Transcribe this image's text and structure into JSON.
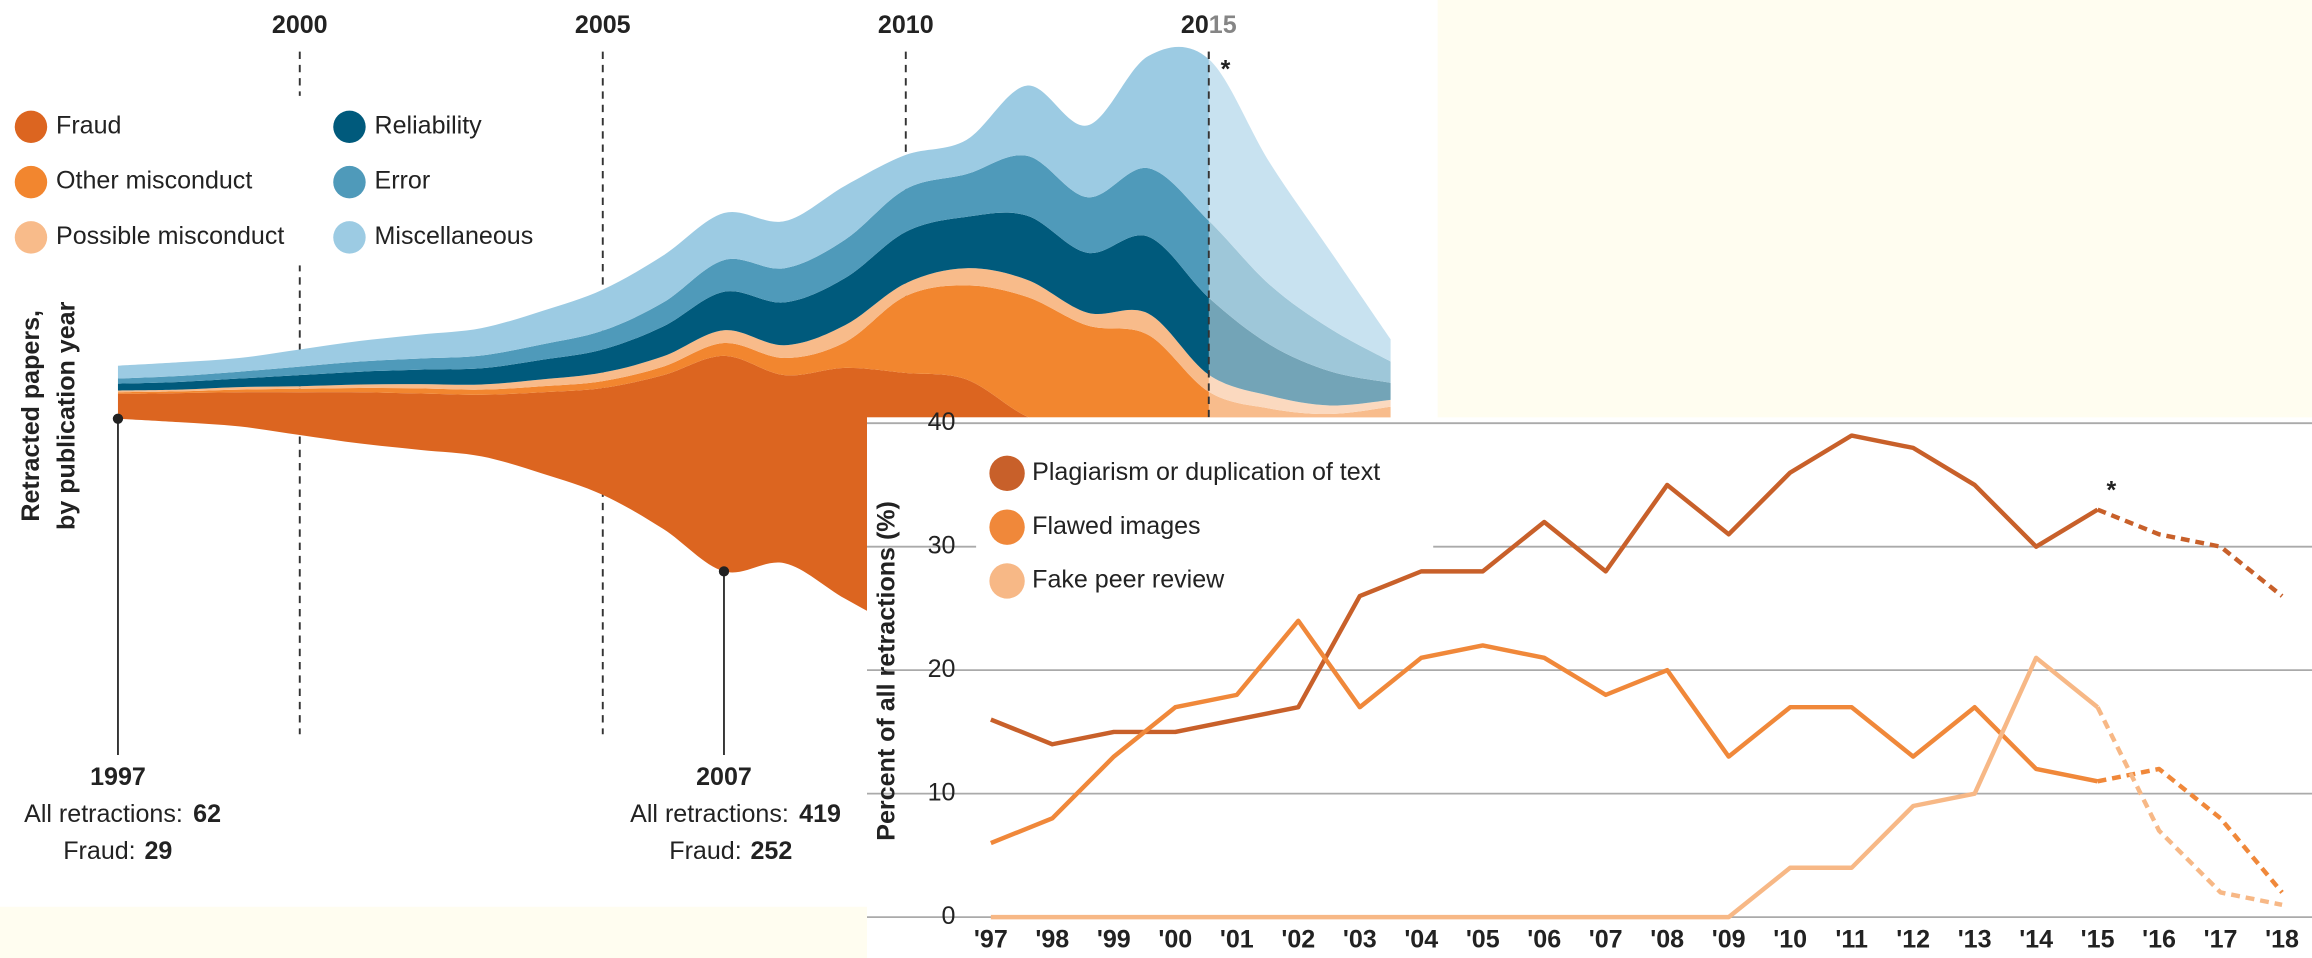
{
  "chart_data": [
    {
      "type": "streamgraph",
      "x": [
        1997,
        1998,
        1999,
        2000,
        2001,
        2002,
        2003,
        2004,
        2005,
        2006,
        2007,
        2008,
        2009,
        2010,
        2011,
        2012,
        2013,
        2014,
        2015,
        2016,
        2017,
        2018
      ],
      "xticks": [
        2000,
        2005,
        2010,
        2015
      ],
      "y_label": [
        "Retracted papers,",
        "by publication year"
      ],
      "projected_from": 2015,
      "projected_marker": "*",
      "series": [
        {
          "name": "Fraud",
          "color": "#dc6520",
          "values": [
            29,
            34,
            40,
            50,
            60,
            66,
            72,
            95,
            125,
            180,
            252,
            220,
            270,
            300,
            310,
            330,
            260,
            300,
            240,
            150,
            80,
            25
          ]
        },
        {
          "name": "Other misconduct",
          "color": "#f2862f",
          "values": [
            2,
            2,
            3,
            4,
            5,
            6,
            6,
            7,
            8,
            10,
            15,
            20,
            30,
            90,
            110,
            140,
            130,
            160,
            150,
            100,
            60,
            20
          ]
        },
        {
          "name": "Possible misconduct",
          "color": "#f8bb8a",
          "values": [
            2,
            2,
            3,
            3,
            4,
            5,
            6,
            8,
            10,
            12,
            15,
            15,
            20,
            15,
            20,
            20,
            15,
            25,
            20,
            15,
            10,
            8
          ]
        },
        {
          "name": "Reliability",
          "color": "#005a7c",
          "values": [
            8,
            9,
            10,
            13,
            15,
            17,
            19,
            23,
            27,
            35,
            45,
            50,
            55,
            60,
            60,
            75,
            70,
            90,
            90,
            60,
            40,
            20
          ]
        },
        {
          "name": "Error",
          "color": "#4f9aba",
          "values": [
            6,
            7,
            8,
            10,
            12,
            13,
            15,
            18,
            22,
            28,
            37,
            40,
            45,
            50,
            50,
            70,
            65,
            80,
            90,
            70,
            50,
            25
          ]
        },
        {
          "name": "Miscellaneous",
          "color": "#9ccbe3",
          "values": [
            15,
            16,
            16,
            20,
            24,
            28,
            32,
            39,
            48,
            55,
            55,
            55,
            63,
            40,
            40,
            82,
            84,
            131,
            189,
            143,
            91,
            26
          ]
        }
      ],
      "annotations": [
        {
          "x": 1997,
          "total_label": "All retractions:",
          "total": 62,
          "fraud_label": "Fraud:",
          "fraud": 29
        },
        {
          "x": 2007,
          "total_label": "All retractions:",
          "total": 419,
          "fraud_label": "Fraud:",
          "fraud": 252
        }
      ]
    },
    {
      "type": "line",
      "categories": [
        "'97",
        "'98",
        "'99",
        "'00",
        "'01",
        "'02",
        "'03",
        "'04",
        "'05",
        "'06",
        "'07",
        "'08",
        "'09",
        "'10",
        "'11",
        "'12",
        "'13",
        "'14",
        "'15",
        "'16",
        "'17",
        "'18"
      ],
      "ylim": [
        0,
        40
      ],
      "yticks": [
        0,
        10,
        20,
        30,
        40
      ],
      "grid": true,
      "y_label": "Percent of all retractions (%)",
      "projected_from": "'15",
      "projected_marker": "*",
      "series": [
        {
          "name": "Plagiarism or duplication of text",
          "color": "#c8602a",
          "values": [
            16,
            14,
            15,
            15,
            16,
            17,
            26,
            28,
            28,
            32,
            28,
            35,
            31,
            36,
            39,
            38,
            35,
            30,
            33,
            31,
            30,
            26
          ]
        },
        {
          "name": "Flawed images",
          "color": "#f0883a",
          "values": [
            6,
            8,
            13,
            17,
            18,
            24,
            17,
            21,
            22,
            21,
            18,
            20,
            13,
            17,
            17,
            13,
            17,
            12,
            11,
            12,
            8,
            2
          ]
        },
        {
          "name": "Fake peer review",
          "color": "#f7b886",
          "values": [
            0,
            0,
            0,
            0,
            0,
            0,
            0,
            0,
            0,
            0,
            0,
            0,
            0,
            4,
            4,
            9,
            10,
            21,
            17,
            7,
            2,
            1
          ]
        }
      ]
    }
  ]
}
